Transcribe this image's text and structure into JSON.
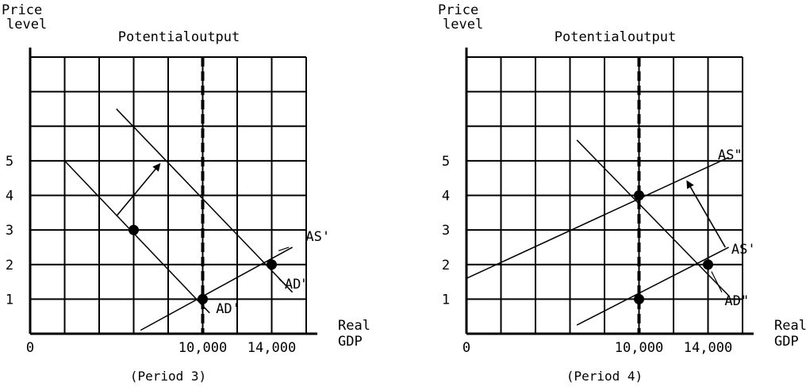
{
  "chart_data": [
    {
      "type": "line",
      "title": "Potentialoutput",
      "caption": "(Period 3)",
      "ylabel": [
        "Price",
        "level"
      ],
      "xlabel": [
        "Real",
        "GDP"
      ],
      "origin_label": "0",
      "x_ticks": [
        {
          "value": 10000,
          "label": "10,000"
        },
        {
          "value": 14000,
          "label": "14,000"
        }
      ],
      "y_ticks": [
        {
          "value": 1,
          "label": "1"
        },
        {
          "value": 2,
          "label": "2"
        },
        {
          "value": 3,
          "label": "3"
        },
        {
          "value": 4,
          "label": "4"
        },
        {
          "value": 5,
          "label": "5"
        }
      ],
      "xlim": [
        0,
        16000
      ],
      "ylim": [
        0,
        8
      ],
      "grid": true,
      "potential_output": 10000,
      "series": [
        {
          "name": "AS'",
          "x": [
            6400,
            15200
          ],
          "y": [
            0.1,
            2.5
          ]
        },
        {
          "name": "AD'",
          "x": [
            2000,
            10400
          ],
          "y": [
            5,
            0.6
          ]
        },
        {
          "name": "AD\"",
          "x": [
            5000,
            15200
          ],
          "y": [
            6.5,
            1.2
          ]
        }
      ],
      "points": [
        {
          "x": 6000,
          "y": 3
        },
        {
          "x": 10000,
          "y": 1
        },
        {
          "x": 14000,
          "y": 2
        }
      ],
      "arrows": [
        {
          "x1": 5000,
          "y1": 3.4,
          "x2": 7500,
          "y2": 4.9
        }
      ]
    },
    {
      "type": "line",
      "title": "Potentialoutput",
      "caption": "(Period 4)",
      "ylabel": [
        "Price",
        "level"
      ],
      "xlabel": [
        "Real",
        "GDP"
      ],
      "origin_label": "0",
      "x_ticks": [
        {
          "value": 10000,
          "label": "10,000"
        },
        {
          "value": 14000,
          "label": "14,000"
        }
      ],
      "y_ticks": [
        {
          "value": 1,
          "label": "1"
        },
        {
          "value": 2,
          "label": "2"
        },
        {
          "value": 3,
          "label": "3"
        },
        {
          "value": 4,
          "label": "4"
        },
        {
          "value": 5,
          "label": "5"
        }
      ],
      "xlim": [
        0,
        16000
      ],
      "ylim": [
        0,
        8
      ],
      "grid": true,
      "potential_output": 10000,
      "series": [
        {
          "name": "AS\"",
          "x": [
            0,
            15200
          ],
          "y": [
            1.6,
            5.1
          ]
        },
        {
          "name": "AS'",
          "x": [
            6400,
            15200
          ],
          "y": [
            0.25,
            2.5
          ]
        },
        {
          "name": "AD\"",
          "x": [
            6400,
            15200
          ],
          "y": [
            5.6,
            1.1
          ]
        }
      ],
      "points": [
        {
          "x": 10000,
          "y": 4
        },
        {
          "x": 10000,
          "y": 1
        },
        {
          "x": 14000,
          "y": 2
        }
      ],
      "arrows": [
        {
          "x1": 15000,
          "y1": 2.5,
          "x2": 12800,
          "y2": 4.4
        }
      ]
    }
  ]
}
